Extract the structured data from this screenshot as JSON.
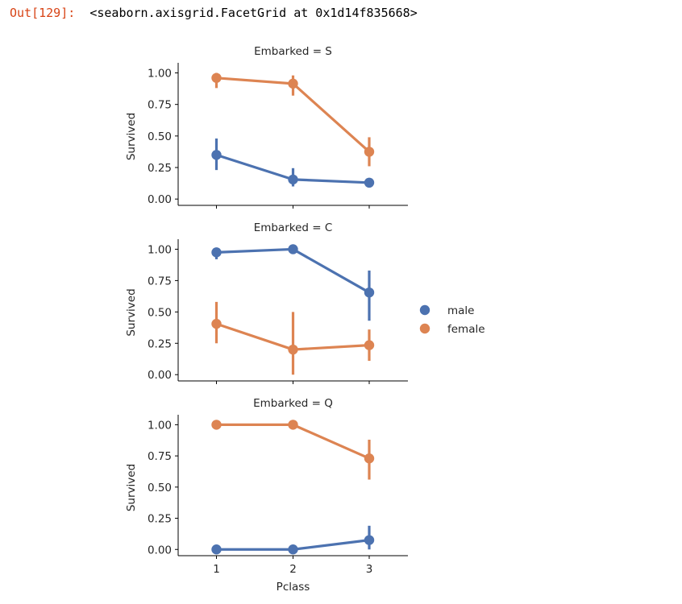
{
  "cell": {
    "prompt": "Out[129]:",
    "output_text": "<seaborn.axisgrid.FacetGrid at 0x1d14f835668>"
  },
  "colors": {
    "male": "#4c72b0",
    "female": "#dd8452",
    "axis": "#000000",
    "text": "#262626"
  },
  "chart_data": {
    "type": "line",
    "kind": "pointplot",
    "facet_variable": "Embarked",
    "xlabel": "Pclass",
    "ylabel": "Survived",
    "categories": [
      "1",
      "2",
      "3"
    ],
    "yticks": [
      "0.00",
      "0.25",
      "0.50",
      "0.75",
      "1.00"
    ],
    "ylim": [
      -0.05,
      1.08
    ],
    "legend": {
      "placement": "right",
      "entries": [
        {
          "label": "male",
          "color": "#4c72b0"
        },
        {
          "label": "female",
          "color": "#dd8452"
        }
      ]
    },
    "panels": [
      {
        "title": "Embarked = S",
        "series": [
          {
            "name": "male",
            "color": "#4c72b0",
            "values": [
              0.35,
              0.155,
              0.13
            ],
            "ci_low": [
              0.23,
              0.1,
              0.1
            ],
            "ci_high": [
              0.48,
              0.245,
              0.16
            ]
          },
          {
            "name": "female",
            "color": "#dd8452",
            "values": [
              0.96,
              0.915,
              0.375
            ],
            "ci_low": [
              0.88,
              0.82,
              0.26
            ],
            "ci_high": [
              1.0,
              0.98,
              0.49
            ]
          }
        ]
      },
      {
        "title": "Embarked = C",
        "series": [
          {
            "name": "male",
            "color": "#4c72b0",
            "values": [
              0.975,
              1.0,
              0.655
            ],
            "ci_low": [
              0.92,
              1.0,
              0.43
            ],
            "ci_high": [
              1.0,
              1.0,
              0.83
            ]
          },
          {
            "name": "female",
            "color": "#dd8452",
            "values": [
              0.405,
              0.2,
              0.235
            ],
            "ci_low": [
              0.25,
              0.0,
              0.11
            ],
            "ci_high": [
              0.58,
              0.5,
              0.36
            ]
          }
        ]
      },
      {
        "title": "Embarked = Q",
        "series": [
          {
            "name": "male",
            "color": "#4c72b0",
            "values": [
              0.0,
              0.0,
              0.075
            ],
            "ci_low": [
              0.0,
              0.0,
              0.0
            ],
            "ci_high": [
              0.0,
              0.0,
              0.19
            ]
          },
          {
            "name": "female",
            "color": "#dd8452",
            "values": [
              1.0,
              1.0,
              0.73
            ],
            "ci_low": [
              1.0,
              1.0,
              0.56
            ],
            "ci_high": [
              1.0,
              1.0,
              0.88
            ]
          }
        ]
      }
    ]
  }
}
